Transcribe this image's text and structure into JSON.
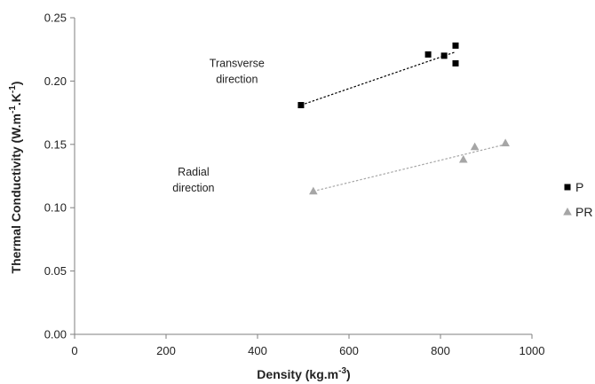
{
  "chart_data": {
    "type": "scatter",
    "xlabel_main": "Density (kg.m",
    "xlabel_sup": "-3",
    "xlabel_end": ")",
    "ylabel_main": "Thermal Conductivity (W.m",
    "ylabel_sup1": "-1",
    "ylabel_mid": ".K",
    "ylabel_sup2": "-1",
    "ylabel_end": ")",
    "xlim": [
      0,
      1000
    ],
    "ylim": [
      0,
      0.25
    ],
    "x_ticks": [
      0,
      200,
      400,
      600,
      800,
      1000
    ],
    "x_tick_labels": [
      "0",
      "200",
      "400",
      "600",
      "800",
      "1000"
    ],
    "y_ticks": [
      0,
      0.05,
      0.1,
      0.15,
      0.2,
      0.25
    ],
    "y_tick_labels": [
      "0.00",
      "0.05",
      "0.10",
      "0.15",
      "0.20",
      "0.25"
    ],
    "grid": false,
    "legend_position": "right",
    "series": [
      {
        "name": "P",
        "marker": "square",
        "color": "#000000",
        "trendline_color": "#000000",
        "points": [
          {
            "x": 495,
            "y": 0.181
          },
          {
            "x": 773,
            "y": 0.221
          },
          {
            "x": 808,
            "y": 0.22
          },
          {
            "x": 833,
            "y": 0.228
          },
          {
            "x": 833,
            "y": 0.214
          }
        ],
        "trendline": {
          "x": [
            495,
            833
          ],
          "y": [
            0.181,
            0.223
          ]
        }
      },
      {
        "name": "PR",
        "marker": "triangle",
        "color": "#a6a6a6",
        "trendline_color": "#a6a6a6",
        "points": [
          {
            "x": 522,
            "y": 0.113
          },
          {
            "x": 850,
            "y": 0.138
          },
          {
            "x": 875,
            "y": 0.148
          },
          {
            "x": 942,
            "y": 0.151
          }
        ],
        "trendline": {
          "x": [
            522,
            942
          ],
          "y": [
            0.113,
            0.15
          ]
        }
      }
    ],
    "annotations": [
      {
        "lines": [
          "Transverse",
          "direction"
        ],
        "x": 355,
        "y": 0.205
      },
      {
        "lines": [
          "Radial",
          "direction"
        ],
        "x": 260,
        "y": 0.119
      }
    ]
  }
}
